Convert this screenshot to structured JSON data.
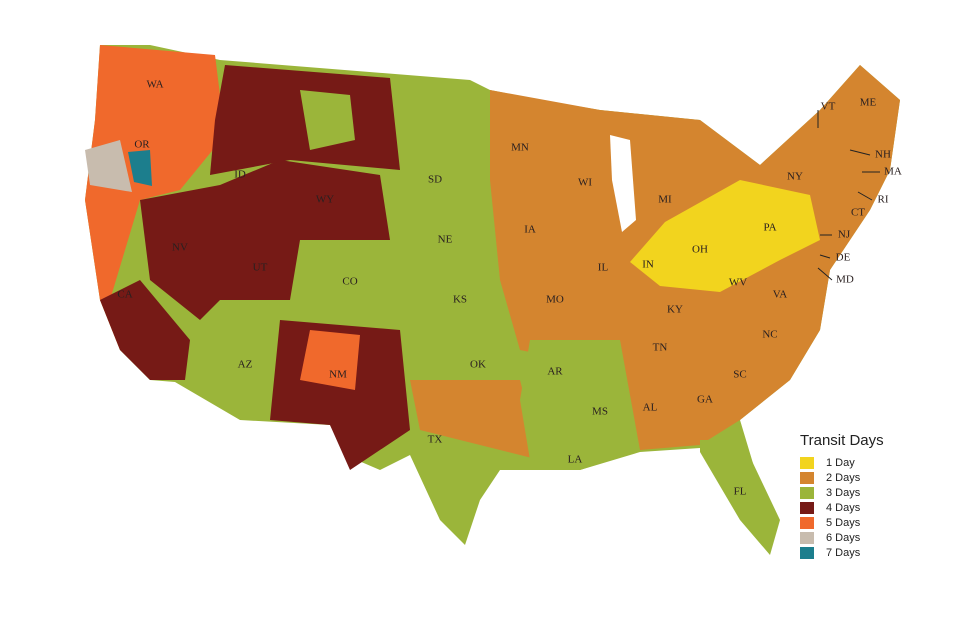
{
  "legend": {
    "title": "Transit Days",
    "items": [
      {
        "label": "1 Day",
        "color": "#f2d41e"
      },
      {
        "label": "2 Days",
        "color": "#d4852f"
      },
      {
        "label": "3 Days",
        "color": "#9bb53a"
      },
      {
        "label": "4 Days",
        "color": "#761a16"
      },
      {
        "label": "5 Days",
        "color": "#f0692c"
      },
      {
        "label": "6 Days",
        "color": "#c8bcae"
      },
      {
        "label": "7 Days",
        "color": "#1c7e8d"
      }
    ]
  },
  "state_labels": [
    "WA",
    "OR",
    "ID",
    "NV",
    "CA",
    "UT",
    "WY",
    "SD",
    "NE",
    "CO",
    "KS",
    "AZ",
    "NM",
    "OK",
    "TX",
    "MN",
    "IA",
    "MO",
    "AR",
    "LA",
    "WI",
    "IL",
    "MI",
    "IN",
    "OH",
    "PA",
    "KY",
    "TN",
    "MS",
    "AL",
    "GA",
    "SC",
    "NC",
    "VA",
    "WV",
    "NY",
    "FL",
    "VT",
    "ME",
    "NH",
    "MA",
    "RI",
    "CT",
    "NJ",
    "DE",
    "MD"
  ]
}
